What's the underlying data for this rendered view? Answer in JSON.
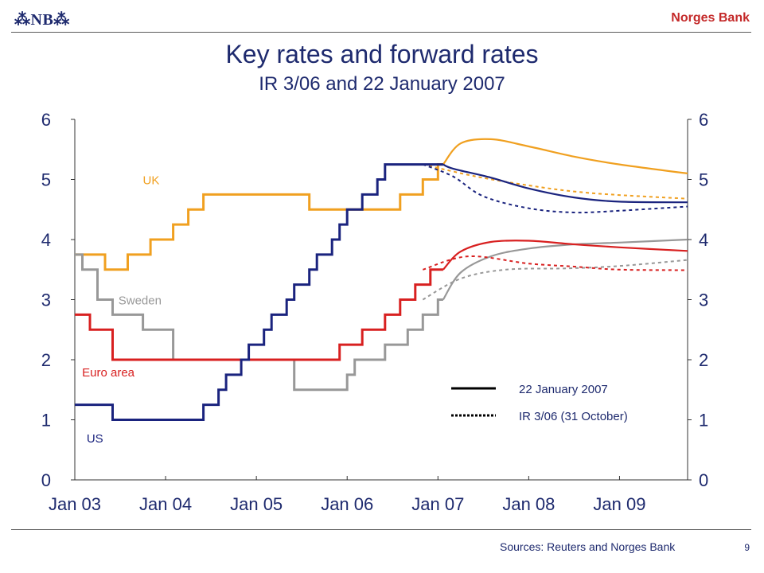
{
  "header": {
    "logo_text": "⁂NB⁂",
    "bank_name": "Norges Bank"
  },
  "slide": {
    "title": "Key rates and forward rates",
    "subtitle": "IR 3/06 and 22 January 2007",
    "source": "Sources: Reuters and Norges Bank",
    "page_number": "9"
  },
  "colors": {
    "title": "#1e2a6e",
    "bank_name": "#c42a2a",
    "UK": "#f0a020",
    "Sweden": "#989898",
    "Euro area": "#d82020",
    "US": "#1a237e"
  },
  "chart_data": {
    "type": "line",
    "x_range": [
      "2003-01",
      "2009-10"
    ],
    "xticks": [
      "Jan 03",
      "Jan 04",
      "Jan 05",
      "Jan 06",
      "Jan 07",
      "Jan 08",
      "Jan 09"
    ],
    "ylim": [
      0,
      6
    ],
    "yticks": [
      0,
      1,
      2,
      3,
      4,
      5,
      6
    ],
    "right_axis": true,
    "legend": {
      "position": "lower-right",
      "entries": [
        {
          "label": "22 January 2007",
          "style": "solid"
        },
        {
          "label": "IR 3/06 (31 October)",
          "style": "dotted"
        }
      ]
    },
    "series": [
      {
        "name": "UK",
        "color_key": "UK",
        "label_pos": [
          2003.75,
          5.0
        ],
        "history": [
          [
            "2003-01-01",
            3.75
          ],
          [
            "2003-05-01",
            3.5
          ],
          [
            "2003-08-01",
            3.75
          ],
          [
            "2003-11-01",
            4.0
          ],
          [
            "2004-02-01",
            4.25
          ],
          [
            "2004-04-01",
            4.5
          ],
          [
            "2004-06-01",
            4.75
          ],
          [
            "2005-08-01",
            4.5
          ],
          [
            "2006-08-01",
            4.75
          ],
          [
            "2006-11-01",
            5.0
          ],
          [
            "2007-01-01",
            5.25
          ],
          [
            "2007-01-22",
            5.25
          ]
        ],
        "forward": [
          [
            "2007-01-22",
            5.25
          ],
          [
            "2007-04-01",
            5.6
          ],
          [
            "2007-08-01",
            5.67
          ],
          [
            "2008-01-01",
            5.55
          ],
          [
            "2008-07-01",
            5.38
          ],
          [
            "2009-01-01",
            5.25
          ],
          [
            "2009-10-01",
            5.1
          ]
        ],
        "ir": [
          [
            "2006-11-01",
            5.25
          ],
          [
            "2007-06-01",
            5.05
          ],
          [
            "2008-01-01",
            4.9
          ],
          [
            "2008-07-01",
            4.8
          ],
          [
            "2009-01-01",
            4.74
          ],
          [
            "2009-10-01",
            4.68
          ]
        ]
      },
      {
        "name": "Sweden",
        "color_key": "Sweden",
        "label_pos": [
          2003.48,
          3.0
        ],
        "history": [
          [
            "2003-01-01",
            3.75
          ],
          [
            "2003-02-01",
            3.5
          ],
          [
            "2003-04-01",
            3.0
          ],
          [
            "2003-06-01",
            2.75
          ],
          [
            "2003-10-01",
            2.5
          ],
          [
            "2004-02-01",
            2.0
          ],
          [
            "2005-06-01",
            1.5
          ],
          [
            "2006-01-01",
            1.75
          ],
          [
            "2006-02-01",
            2.0
          ],
          [
            "2006-06-01",
            2.25
          ],
          [
            "2006-09-01",
            2.5
          ],
          [
            "2006-11-01",
            2.75
          ],
          [
            "2007-01-01",
            3.0
          ],
          [
            "2007-01-22",
            3.0
          ]
        ],
        "forward": [
          [
            "2007-01-22",
            3.0
          ],
          [
            "2007-04-01",
            3.45
          ],
          [
            "2007-08-01",
            3.72
          ],
          [
            "2008-01-01",
            3.85
          ],
          [
            "2008-07-01",
            3.92
          ],
          [
            "2009-01-01",
            3.95
          ],
          [
            "2009-10-01",
            4.0
          ]
        ],
        "ir": [
          [
            "2006-11-01",
            3.0
          ],
          [
            "2007-04-01",
            3.35
          ],
          [
            "2007-10-01",
            3.5
          ],
          [
            "2008-06-01",
            3.52
          ],
          [
            "2009-01-01",
            3.56
          ],
          [
            "2009-10-01",
            3.66
          ]
        ]
      },
      {
        "name": "Euro area",
        "color_key": "Euro area",
        "label_pos": [
          2003.08,
          1.8
        ],
        "history": [
          [
            "2003-01-01",
            2.75
          ],
          [
            "2003-03-01",
            2.5
          ],
          [
            "2003-06-01",
            2.0
          ],
          [
            "2005-12-01",
            2.25
          ],
          [
            "2006-03-01",
            2.5
          ],
          [
            "2006-06-01",
            2.75
          ],
          [
            "2006-08-01",
            3.0
          ],
          [
            "2006-10-01",
            3.25
          ],
          [
            "2006-12-01",
            3.5
          ],
          [
            "2007-01-22",
            3.5
          ]
        ],
        "forward": [
          [
            "2007-01-22",
            3.5
          ],
          [
            "2007-04-01",
            3.8
          ],
          [
            "2007-08-01",
            3.96
          ],
          [
            "2008-01-01",
            3.98
          ],
          [
            "2008-07-01",
            3.92
          ],
          [
            "2009-01-01",
            3.87
          ],
          [
            "2009-10-01",
            3.81
          ]
        ],
        "ir": [
          [
            "2006-11-01",
            3.5
          ],
          [
            "2007-05-01",
            3.72
          ],
          [
            "2008-01-01",
            3.6
          ],
          [
            "2008-07-01",
            3.55
          ],
          [
            "2009-01-01",
            3.5
          ],
          [
            "2009-10-01",
            3.49
          ]
        ]
      },
      {
        "name": "US",
        "color_key": "US",
        "label_pos": [
          2003.13,
          0.7
        ],
        "history": [
          [
            "2003-01-01",
            1.25
          ],
          [
            "2003-06-01",
            1.0
          ],
          [
            "2004-06-01",
            1.25
          ],
          [
            "2004-08-01",
            1.5
          ],
          [
            "2004-09-01",
            1.75
          ],
          [
            "2004-11-01",
            2.0
          ],
          [
            "2004-12-01",
            2.25
          ],
          [
            "2005-02-01",
            2.5
          ],
          [
            "2005-03-01",
            2.75
          ],
          [
            "2005-05-01",
            3.0
          ],
          [
            "2005-06-01",
            3.25
          ],
          [
            "2005-08-01",
            3.5
          ],
          [
            "2005-09-01",
            3.75
          ],
          [
            "2005-11-01",
            4.0
          ],
          [
            "2005-12-01",
            4.25
          ],
          [
            "2006-01-01",
            4.5
          ],
          [
            "2006-03-01",
            4.75
          ],
          [
            "2006-05-01",
            5.0
          ],
          [
            "2006-06-01",
            5.25
          ],
          [
            "2007-01-22",
            5.25
          ]
        ],
        "forward": [
          [
            "2007-01-22",
            5.25
          ],
          [
            "2007-03-01",
            5.18
          ],
          [
            "2007-08-01",
            5.03
          ],
          [
            "2008-01-01",
            4.85
          ],
          [
            "2008-07-01",
            4.7
          ],
          [
            "2009-01-01",
            4.63
          ],
          [
            "2009-10-01",
            4.62
          ]
        ],
        "ir": [
          [
            "2006-11-01",
            5.25
          ],
          [
            "2007-03-01",
            5.05
          ],
          [
            "2007-07-01",
            4.72
          ],
          [
            "2008-01-01",
            4.52
          ],
          [
            "2008-07-01",
            4.45
          ],
          [
            "2009-01-01",
            4.48
          ],
          [
            "2009-10-01",
            4.55
          ]
        ]
      }
    ]
  }
}
